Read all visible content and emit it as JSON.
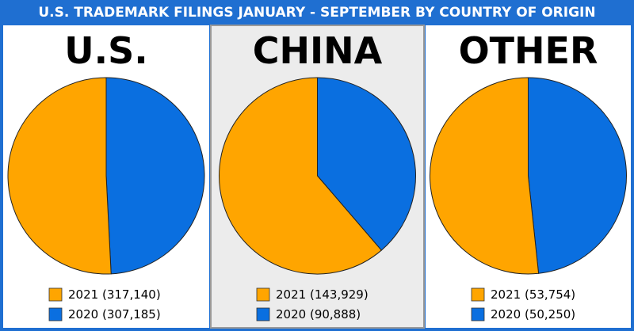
{
  "title": "U.S. TRADEMARK FILINGS JANUARY - SEPTEMBER BY COUNTRY OF ORIGIN",
  "chart_data": [
    {
      "type": "pie",
      "title": "U.S.",
      "categories": [
        "2021",
        "2020"
      ],
      "values": [
        317140,
        307185
      ],
      "value_labels": [
        "(317,140)",
        "(307,185)"
      ],
      "colors": [
        "#ffa500",
        "#0a6fe0"
      ]
    },
    {
      "type": "pie",
      "title": "CHINA",
      "categories": [
        "2021",
        "2020"
      ],
      "values": [
        143929,
        90888
      ],
      "value_labels": [
        "(143,929)",
        "(90,888)"
      ],
      "colors": [
        "#ffa500",
        "#0a6fe0"
      ]
    },
    {
      "type": "pie",
      "title": "OTHER",
      "categories": [
        "2021",
        "2020"
      ],
      "values": [
        53754,
        50250
      ],
      "value_labels": [
        "(53,754)",
        "(50,250)"
      ],
      "colors": [
        "#ffa500",
        "#0a6fe0"
      ]
    }
  ]
}
